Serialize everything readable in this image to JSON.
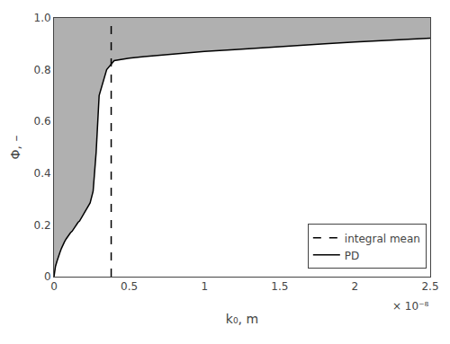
{
  "chart_data": {
    "type": "line",
    "xlabel": "k₀, m",
    "ylabel": "Φ, –",
    "annotations": [
      {
        "text": "× 10⁻⁸"
      }
    ],
    "xlim": [
      0,
      2.5e-08
    ],
    "ylim": [
      0,
      1
    ],
    "xticks": [
      0,
      {
        "value": 5e-09,
        "label": "0.5"
      },
      {
        "value": 1e-08,
        "label": "1"
      },
      {
        "value": 1.5e-08,
        "label": "1.5"
      },
      {
        "value": 2e-08,
        "label": "2"
      },
      {
        "value": 2.5e-08,
        "label": "2.5"
      }
    ],
    "yticks": [
      0,
      0.2,
      0.4,
      0.6,
      0.8,
      {
        "value": 1.0,
        "label": "1.0"
      }
    ],
    "grid": false,
    "legend": "lower right",
    "series": [
      {
        "type": "area",
        "color": "#b0b0b0",
        "x": [
          0,
          2e-11,
          5e-11,
          1e-10,
          2e-10,
          3e-10,
          4e-10,
          5e-10,
          6e-10,
          7e-10,
          8e-10,
          9e-10,
          1e-09,
          1.1e-09,
          1.2e-09,
          1.3e-09,
          1.4e-09,
          1.5e-09,
          1.6e-09,
          1.7e-09,
          1.8e-09,
          1.9e-09,
          2e-09,
          2.2e-09,
          2.4e-09,
          2.6e-09,
          2.8e-09,
          3e-09,
          3.5e-09,
          4e-09,
          5e-09,
          6e-09,
          7e-09,
          8e-09,
          9e-09,
          1e-08,
          1.2e-08,
          1.4e-08,
          1.6e-08,
          1.8e-08,
          2e-08,
          2.2e-08,
          2.35e-08,
          2.5e-08
        ],
        "values": [
          0,
          0.01,
          0.02,
          0.04,
          0.06,
          0.08,
          0.095,
          0.11,
          0.125,
          0.135,
          0.145,
          0.155,
          0.16,
          0.17,
          0.175,
          0.185,
          0.19,
          0.2,
          0.21,
          0.215,
          0.225,
          0.235,
          0.245,
          0.265,
          0.285,
          0.33,
          0.48,
          0.7,
          0.8,
          0.835,
          0.845,
          0.851,
          0.856,
          0.861,
          0.866,
          0.871,
          0.878,
          0.886,
          0.893,
          0.9,
          0.907,
          0.913,
          0.918,
          0.922
        ]
      },
      {
        "name": "PD",
        "type": "line",
        "color": "#000000",
        "line_style": "solid",
        "x": [
          0,
          2e-11,
          5e-11,
          1e-10,
          2e-10,
          3e-10,
          4e-10,
          5e-10,
          6e-10,
          7e-10,
          8e-10,
          9e-10,
          1e-09,
          1.1e-09,
          1.2e-09,
          1.3e-09,
          1.4e-09,
          1.5e-09,
          1.6e-09,
          1.7e-09,
          1.8e-09,
          1.9e-09,
          2e-09,
          2.2e-09,
          2.4e-09,
          2.6e-09,
          2.8e-09,
          3e-09,
          3.5e-09,
          4e-09,
          5e-09,
          6e-09,
          7e-09,
          8e-09,
          9e-09,
          1e-08,
          1.2e-08,
          1.4e-08,
          1.6e-08,
          1.8e-08,
          2e-08,
          2.2e-08,
          2.35e-08,
          2.5e-08
        ],
        "values": [
          0,
          0.01,
          0.02,
          0.04,
          0.06,
          0.08,
          0.095,
          0.11,
          0.125,
          0.135,
          0.145,
          0.155,
          0.16,
          0.17,
          0.175,
          0.185,
          0.19,
          0.2,
          0.21,
          0.215,
          0.225,
          0.235,
          0.245,
          0.265,
          0.285,
          0.33,
          0.48,
          0.7,
          0.8,
          0.835,
          0.845,
          0.851,
          0.856,
          0.861,
          0.866,
          0.871,
          0.878,
          0.886,
          0.893,
          0.9,
          0.907,
          0.913,
          0.918,
          0.922
        ]
      },
      {
        "name": "integral mean",
        "type": "line",
        "color": "#000000",
        "line_style": "dashed",
        "x": [
          3.8e-09,
          3.8e-09
        ],
        "values": [
          0,
          1
        ]
      }
    ]
  }
}
